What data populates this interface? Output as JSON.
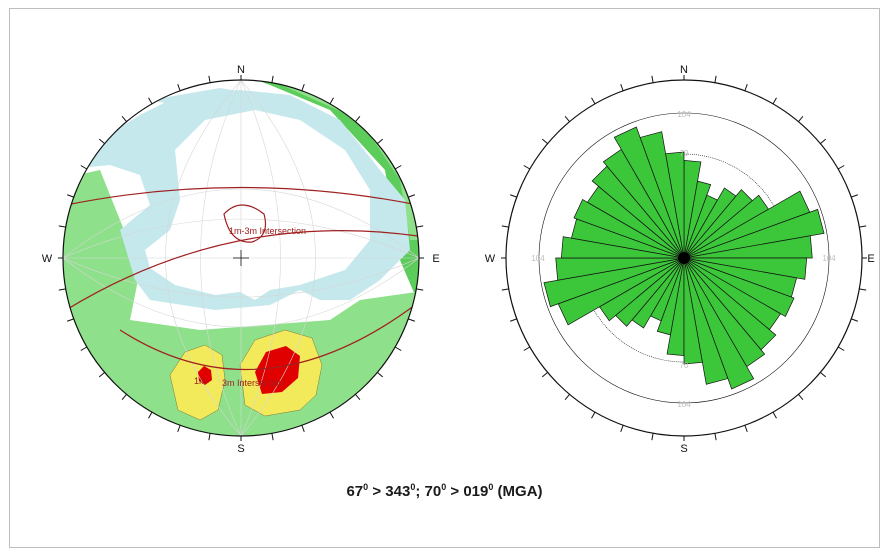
{
  "caption": {
    "dip1": "67",
    "dir1": "343",
    "dip2": "70",
    "dir2": "019",
    "suffix": "(MGA)"
  },
  "compass": {
    "n": "N",
    "s": "S",
    "e": "E",
    "w": "W"
  },
  "colors": {
    "contour_lightblue": "#c4e8ec",
    "contour_green": "#8ee08a",
    "contour_darkgreen": "#5ccc5a",
    "contour_yellow": "#f2ea5a",
    "contour_red": "#e00000",
    "great_circle": "#a02020",
    "rose_fill": "#3cc63a"
  },
  "chart_data": [
    {
      "type": "stereonet",
      "annotations": [
        "1m-3m Intersection",
        "1m",
        "3m Intersection"
      ]
    },
    {
      "type": "rose",
      "ring_labels": [
        "104",
        "70",
        "70",
        "104",
        "104",
        "104"
      ],
      "bins_deg": 10,
      "values": [
        70,
        56,
        48,
        58,
        64,
        70,
        96,
        102,
        92,
        88,
        82,
        84,
        80,
        86,
        90,
        100,
        92,
        76
      ],
      "rmax": 104
    }
  ]
}
